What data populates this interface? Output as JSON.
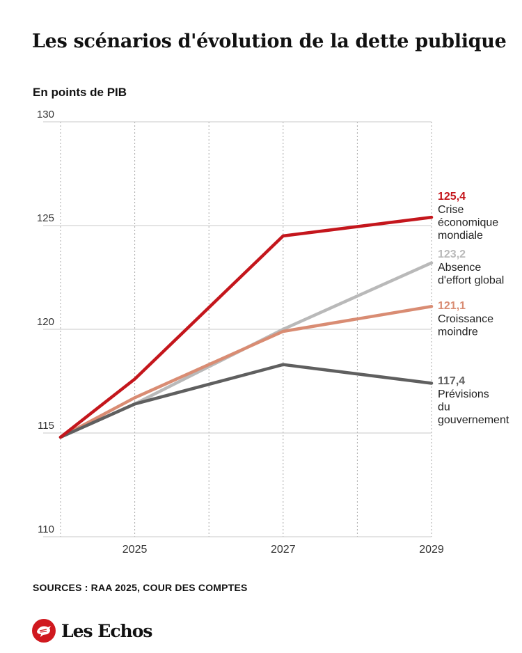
{
  "header": {
    "title": "Les scénarios d'évolution de la dette publique",
    "subtitle": "En points de PIB"
  },
  "footer": {
    "sources": "SOURCES : RAA 2025, COUR DES COMPTES",
    "logo_text": "Les Echos"
  },
  "chart_data": {
    "type": "line",
    "title": "Les scénarios d'évolution de la dette publique",
    "ylabel": "En points de PIB",
    "xlabel": "",
    "x": [
      2024,
      2025,
      2027,
      2029
    ],
    "xlim": [
      2024,
      2029
    ],
    "xticks": [
      "2025",
      "2027",
      "2029"
    ],
    "ylim": [
      110,
      130
    ],
    "yticks": [
      "110",
      "115",
      "120",
      "125",
      "130"
    ],
    "grid": true,
    "series": [
      {
        "key": "crise",
        "name": "Crise économique mondiale",
        "label_lines": [
          "Crise",
          "économique",
          "mondiale"
        ],
        "end_label": "125,4",
        "color": "#c4161c",
        "values": [
          114.8,
          117.6,
          124.5,
          125.4
        ]
      },
      {
        "key": "absence",
        "name": "Absence d'effort global",
        "label_lines": [
          "Absence",
          "d'effort global"
        ],
        "end_label": "123,2",
        "color": "#b9b9b9",
        "values": [
          114.8,
          116.4,
          120.0,
          123.2
        ]
      },
      {
        "key": "croissance",
        "name": "Croissance moindre",
        "label_lines": [
          "Croissance",
          "moindre"
        ],
        "end_label": "121,1",
        "color": "#d98c73",
        "values": [
          114.8,
          116.7,
          119.9,
          121.1
        ]
      },
      {
        "key": "gouv",
        "name": "Prévisions du gouvernement",
        "label_lines": [
          "Prévisions",
          "du",
          "gouvernement"
        ],
        "end_label": "117,4",
        "color": "#5f5f5f",
        "values": [
          114.8,
          116.4,
          118.3,
          117.4
        ]
      }
    ]
  }
}
